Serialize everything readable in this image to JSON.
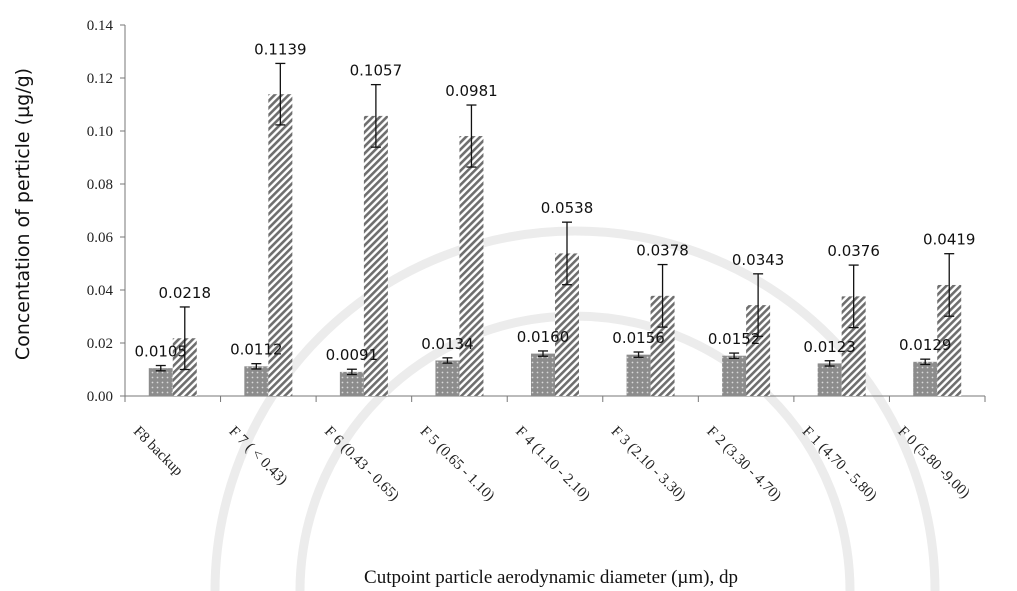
{
  "chart_data": {
    "type": "bar",
    "ylabel": "Concentation of perticle (µg/g)",
    "xlabel": "Cutpoint particle aerodynamic diameter (µm), dp",
    "ylim": [
      0,
      0.14
    ],
    "yticks": [
      "0.00",
      "0.02",
      "0.04",
      "0.06",
      "0.08",
      "0.10",
      "0.12",
      "0.14"
    ],
    "grid": false,
    "categories": [
      "F8 backup",
      "F 7 ( < 0.43)",
      "F 6 (0.43 - 0.65)",
      "F 5 (0.65 - 1.10)",
      "F 4 (1.10 - 2.10)",
      "F 3 (2.10 - 3.30)",
      "F 2 (3.30 - 4.70)",
      "F 1 (4.70 - 5.80)",
      "F 0 (5.80 -9.00)"
    ],
    "series": [
      {
        "values": [
          0.0105,
          0.0112,
          0.0091,
          0.0134,
          0.016,
          0.0156,
          0.0152,
          0.0123,
          0.0129
        ],
        "labels": [
          "0.0105",
          "0.0112",
          "0.0091",
          "0.0134",
          "0.0160",
          "0.0156",
          "0.0152",
          "0.0123",
          "0.0129"
        ],
        "errors": [
          0.001,
          0.001,
          0.001,
          0.001,
          0.001,
          0.001,
          0.001,
          0.001,
          0.001
        ],
        "pattern": "dotted",
        "color": "#8c8c8c"
      },
      {
        "values": [
          0.0218,
          0.1139,
          0.1057,
          0.0981,
          0.0538,
          0.0378,
          0.0343,
          0.0376,
          0.0419
        ],
        "labels": [
          "0.0218",
          "0.1139",
          "0.1057",
          "0.0981",
          "0.0538",
          "0.0378",
          "0.0343",
          "0.0376",
          "0.0419"
        ],
        "errors": [
          0.0118,
          0.0116,
          0.0118,
          0.0117,
          0.0118,
          0.0118,
          0.0118,
          0.0118,
          0.0118
        ],
        "pattern": "diagonal-hatch",
        "color": "#6e6e6e"
      }
    ]
  }
}
